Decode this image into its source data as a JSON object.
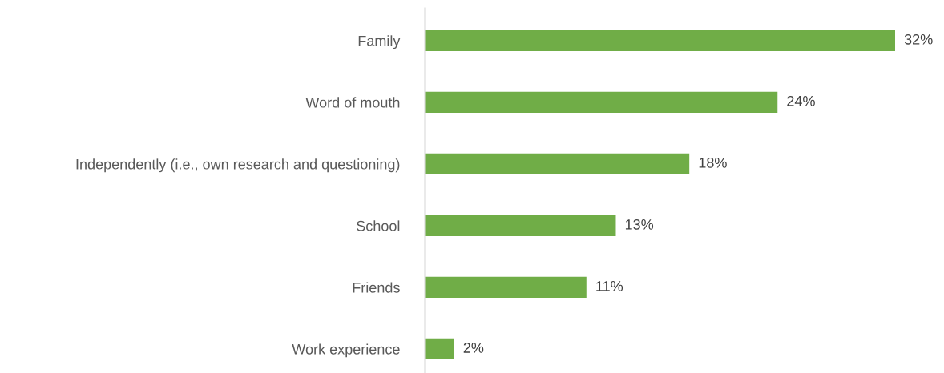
{
  "chart_data": {
    "type": "bar",
    "orientation": "horizontal",
    "categories": [
      "Family",
      "Word of mouth",
      "Independently (i.e., own research and questioning)",
      "School",
      "Friends",
      "Work experience"
    ],
    "values": [
      32,
      24,
      18,
      13,
      11,
      2
    ],
    "value_labels": [
      "32%",
      "24%",
      "18%",
      "13%",
      "11%",
      "2%"
    ],
    "color": "#70ad47",
    "grid": false,
    "legend": false
  }
}
